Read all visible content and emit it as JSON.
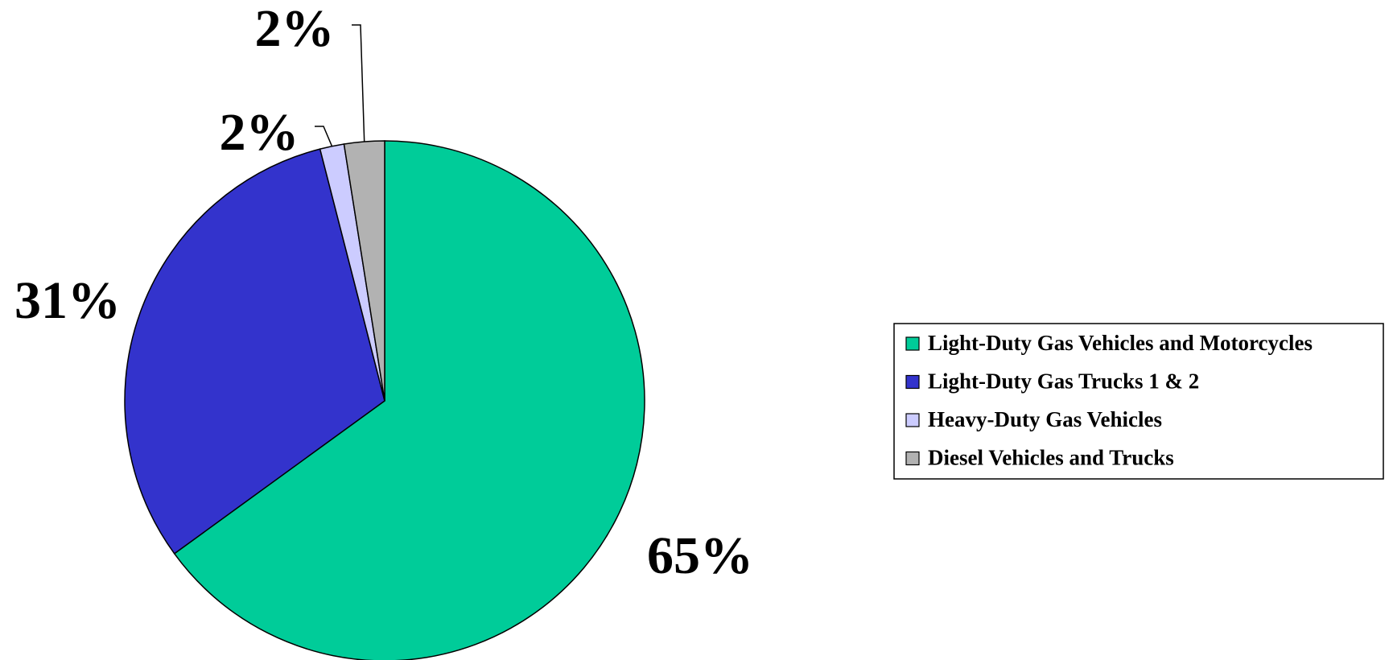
{
  "chart_data": {
    "type": "pie",
    "title": "",
    "legend_position": "right",
    "slices": [
      {
        "name": "Light-Duty Gas Vehicles and Motorcycles",
        "value": 65,
        "label": "65%",
        "color": "#00CC99"
      },
      {
        "name": "Light-Duty Gas Trucks 1 & 2",
        "value": 31,
        "label": "31%",
        "color": "#3333CC"
      },
      {
        "name": "Heavy-Duty Gas Vehicles",
        "value": 1.5,
        "label": "2%",
        "color": "#CCCCFF"
      },
      {
        "name": "Diesel Vehicles and Trucks",
        "value": 2.5,
        "label": "2%",
        "color": "#B2B2B2"
      }
    ]
  }
}
